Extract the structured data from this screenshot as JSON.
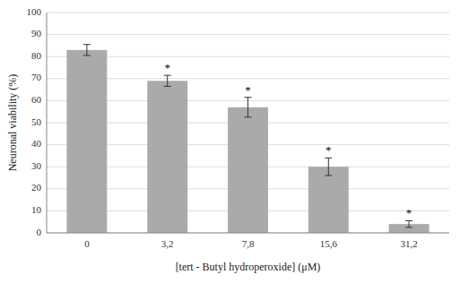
{
  "chart_data": {
    "type": "bar",
    "categories": [
      "0",
      "3,2",
      "7,8",
      "15,6",
      "31,2"
    ],
    "values": [
      83.0,
      69.0,
      57.0,
      30.0,
      4.0
    ],
    "errors": [
      2.5,
      2.5,
      4.5,
      4.0,
      1.5
    ],
    "annotations": [
      null,
      "*",
      "*",
      "*",
      "*"
    ],
    "color": "#aaaaaa",
    "ylabel": "Neuronal viability (%)",
    "xlabel": "[tert - Butyl hydroperoxide] (μM)",
    "ylim": [
      0,
      100
    ],
    "yticks": [
      0,
      10,
      20,
      30,
      40,
      50,
      60,
      70,
      80,
      90,
      100
    ],
    "grid": true
  }
}
